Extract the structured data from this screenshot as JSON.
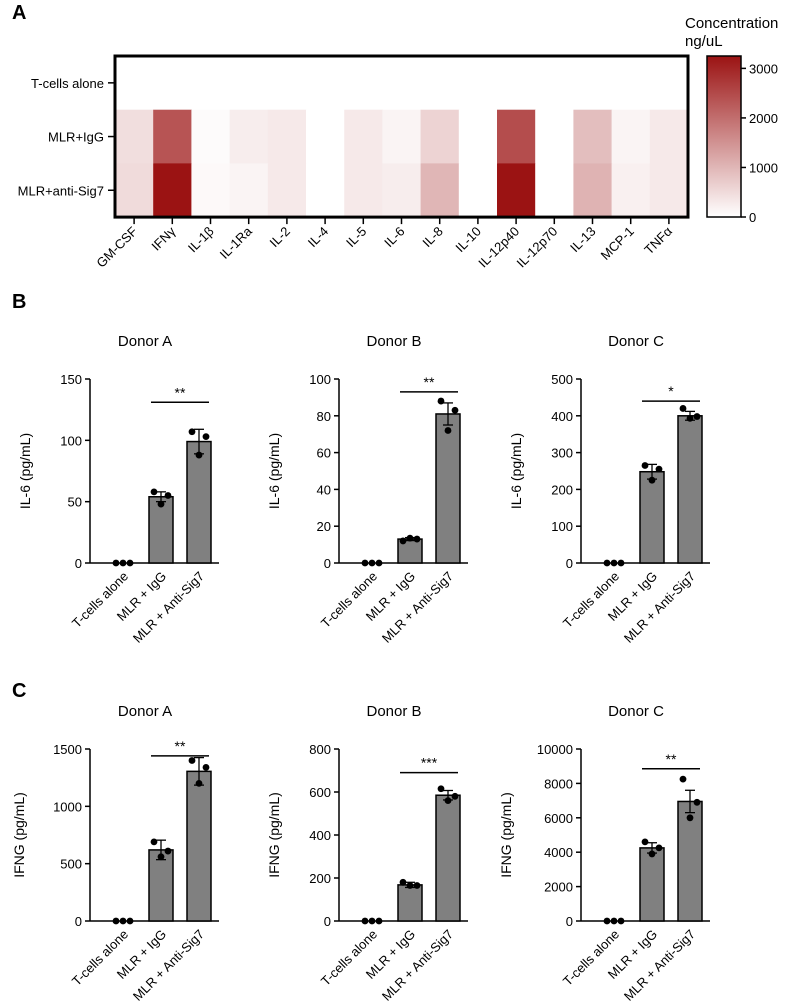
{
  "colors": {
    "bar": "#808080",
    "heat_low": "#ffffff",
    "heat_high": "#9b1313",
    "axis": "#000000"
  },
  "chart_data": [
    {
      "id": "panel-a-heatmap",
      "type": "heatmap",
      "panel_label": "A",
      "rows": [
        "T-cells alone",
        "MLR+IgG",
        "MLR+anti-Sig7"
      ],
      "columns": [
        "GM-CSF",
        "IFNγ",
        "IL-1β",
        "IL-1Ra",
        "IL-2",
        "IL-4",
        "IL-5",
        "IL-6",
        "IL-8",
        "IL-10",
        "IL-12p40",
        "IL-12p70",
        "IL-13",
        "MCP-1",
        "TNFα"
      ],
      "values": [
        [
          0,
          0,
          0,
          0,
          0,
          0,
          0,
          0,
          0,
          0,
          0,
          0,
          0,
          0,
          0
        ],
        [
          450,
          2350,
          50,
          250,
          300,
          0,
          300,
          150,
          600,
          0,
          2450,
          0,
          900,
          150,
          300
        ],
        [
          500,
          3250,
          80,
          150,
          300,
          0,
          300,
          250,
          1000,
          0,
          3250,
          0,
          1050,
          200,
          300
        ]
      ],
      "colorbar": {
        "title_line1": "Concentration",
        "title_line2": "ng/uL",
        "min": 0,
        "max": 3250,
        "ticks": [
          0,
          1000,
          2000,
          3000
        ]
      }
    },
    {
      "id": "panel-b-donor-a",
      "type": "bar",
      "panel_label": "B",
      "title": "Donor A",
      "ylabel": "IL-6 (pg/mL)",
      "categories": [
        "T-cells alone",
        "MLR + IgG",
        "MLR + Anti-Sig7"
      ],
      "values": [
        0,
        54,
        99
      ],
      "errors": [
        0,
        4,
        10
      ],
      "points": [
        [
          0,
          0,
          0
        ],
        [
          58,
          55,
          48
        ],
        [
          107,
          103,
          88
        ]
      ],
      "ylim": [
        0,
        150
      ],
      "yticks": [
        0,
        50,
        100,
        150
      ],
      "significance": {
        "from": 1,
        "to": 2,
        "label": "**",
        "y": 131
      }
    },
    {
      "id": "panel-b-donor-b",
      "type": "bar",
      "title": "Donor B",
      "ylabel": "IL-6 (pg/mL)",
      "categories": [
        "T-cells alone",
        "MLR + IgG",
        "MLR + Anti-Sig7"
      ],
      "values": [
        0,
        13,
        81
      ],
      "errors": [
        0,
        0.8,
        6
      ],
      "points": [
        [
          0,
          0,
          0
        ],
        [
          12,
          13,
          13.5
        ],
        [
          88,
          83,
          72
        ]
      ],
      "ylim": [
        0,
        100
      ],
      "yticks": [
        0,
        20,
        40,
        60,
        80,
        100
      ],
      "significance": {
        "from": 1,
        "to": 2,
        "label": "**",
        "y": 93
      }
    },
    {
      "id": "panel-b-donor-c",
      "type": "bar",
      "title": "Donor C",
      "ylabel": "IL-6 (pg/mL)",
      "categories": [
        "T-cells alone",
        "MLR + IgG",
        "MLR + Anti-Sig7"
      ],
      "values": [
        0,
        248,
        400
      ],
      "errors": [
        0,
        20,
        12
      ],
      "points": [
        [
          0,
          0,
          0
        ],
        [
          265,
          255,
          225
        ],
        [
          420,
          398,
          393
        ]
      ],
      "ylim": [
        0,
        500
      ],
      "yticks": [
        0,
        100,
        200,
        300,
        400,
        500
      ],
      "significance": {
        "from": 1,
        "to": 2,
        "label": "*",
        "y": 440
      }
    },
    {
      "id": "panel-c-donor-a",
      "type": "bar",
      "panel_label": "C",
      "title": "Donor A",
      "ylabel": "IFNG (pg/mL)",
      "categories": [
        "T-cells alone",
        "MLR + IgG",
        "MLR + Anti-Sig7"
      ],
      "values": [
        0,
        620,
        1305
      ],
      "errors": [
        0,
        85,
        120
      ],
      "points": [
        [
          0,
          0,
          0
        ],
        [
          690,
          610,
          560
        ],
        [
          1400,
          1340,
          1200
        ]
      ],
      "ylim": [
        0,
        1500
      ],
      "yticks": [
        0,
        500,
        1000,
        1500
      ],
      "significance": {
        "from": 1,
        "to": 2,
        "label": "**",
        "y": 1440
      }
    },
    {
      "id": "panel-c-donor-b",
      "type": "bar",
      "title": "Donor B",
      "ylabel": "IFNG (pg/mL)",
      "categories": [
        "T-cells alone",
        "MLR + IgG",
        "MLR + Anti-Sig7"
      ],
      "values": [
        0,
        168,
        585
      ],
      "errors": [
        0,
        12,
        22
      ],
      "points": [
        [
          0,
          0,
          0
        ],
        [
          180,
          165,
          165
        ],
        [
          615,
          580,
          560
        ]
      ],
      "ylim": [
        0,
        800
      ],
      "yticks": [
        0,
        200,
        400,
        600,
        800
      ],
      "significance": {
        "from": 1,
        "to": 2,
        "label": "***",
        "y": 690
      }
    },
    {
      "id": "panel-c-donor-c",
      "type": "bar",
      "title": "Donor C",
      "ylabel": "IFNG (pg/mL)",
      "categories": [
        "T-cells alone",
        "MLR + IgG",
        "MLR + Anti-Sig7"
      ],
      "values": [
        0,
        4250,
        6950
      ],
      "errors": [
        0,
        300,
        650
      ],
      "points": [
        [
          0,
          0,
          0
        ],
        [
          4600,
          4250,
          3900
        ],
        [
          8250,
          6900,
          6000
        ]
      ],
      "ylim": [
        0,
        10000
      ],
      "yticks": [
        0,
        2000,
        4000,
        6000,
        8000,
        10000
      ],
      "significance": {
        "from": 1,
        "to": 2,
        "label": "**",
        "y": 8850
      }
    }
  ]
}
